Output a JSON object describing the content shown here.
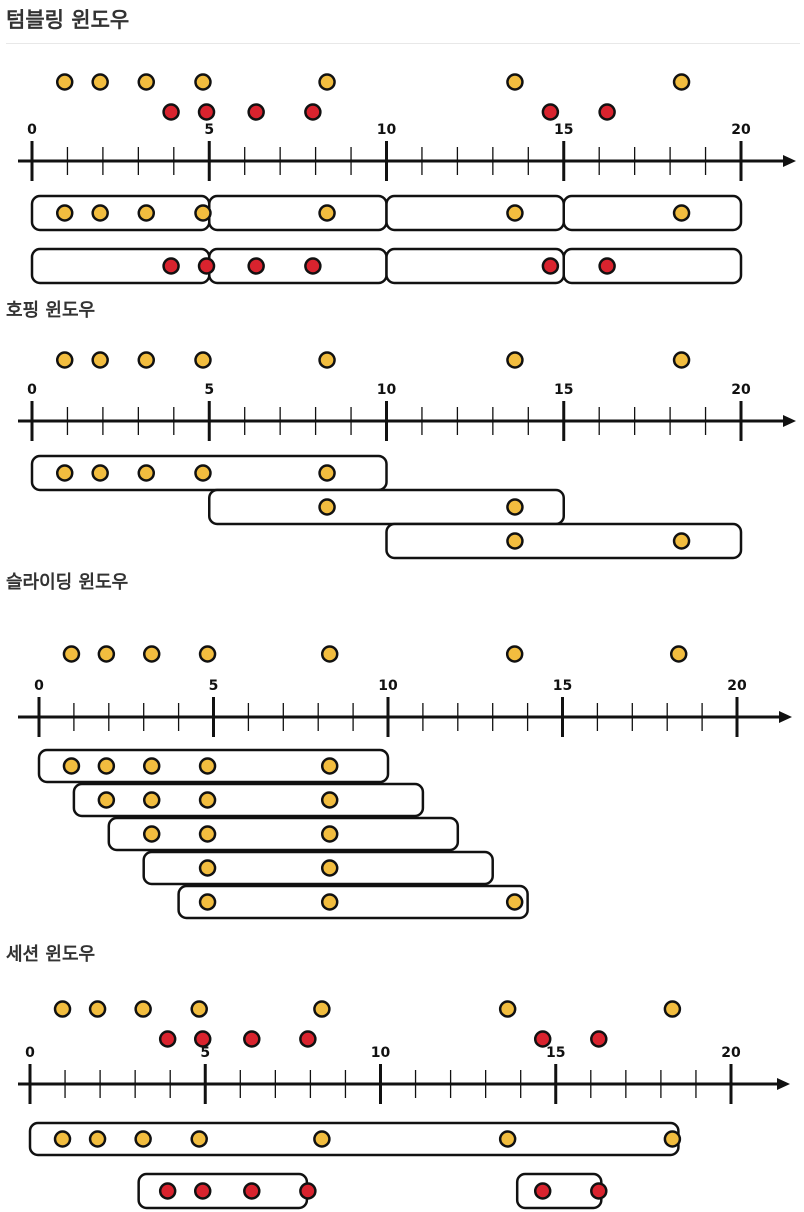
{
  "sections": {
    "tumbling": {
      "title": "텀블링 윈도우",
      "axis_ticks": [
        "0",
        "5",
        "10",
        "15",
        "20"
      ],
      "events_yellow": [
        0.5,
        1.5,
        2.8,
        4.4,
        7.9,
        13.2,
        17.9
      ],
      "events_red": [
        3.5,
        4.5,
        5.9,
        7.5,
        14.2,
        15.8
      ],
      "windows": [
        [
          0,
          5
        ],
        [
          5,
          10
        ],
        [
          10,
          15
        ],
        [
          15,
          20
        ]
      ]
    },
    "hopping": {
      "title": "호핑 윈도우",
      "axis_ticks": [
        "0",
        "5",
        "10",
        "15",
        "20"
      ],
      "events": [
        0.5,
        1.5,
        2.8,
        4.4,
        7.9,
        13.2,
        17.9
      ],
      "windows": [
        [
          0,
          10
        ],
        [
          5,
          15
        ],
        [
          10,
          20
        ]
      ]
    },
    "sliding": {
      "title": "슬라이딩 윈도우",
      "axis_ticks": [
        "0",
        "5",
        "10",
        "15",
        "20"
      ],
      "events": [
        0.5,
        1.5,
        2.8,
        4.4,
        7.9,
        13.2,
        17.9
      ],
      "windows": [
        [
          0,
          10
        ],
        [
          1,
          11
        ],
        [
          2,
          12
        ],
        [
          3,
          13
        ],
        [
          4,
          14
        ]
      ]
    },
    "session": {
      "title": "세션 윈도우",
      "axis_ticks": [
        "0",
        "5",
        "10",
        "15",
        "20"
      ],
      "events_yellow": [
        0.5,
        1.5,
        2.8,
        4.4,
        7.9,
        13.2,
        17.9
      ],
      "events_red": [
        3.5,
        4.5,
        5.9,
        7.5,
        14.2,
        15.8
      ],
      "windows_yellow": [
        [
          0,
          18.5
        ]
      ],
      "windows_red": [
        [
          3.1,
          7.9
        ],
        [
          13.9,
          16.3
        ]
      ]
    }
  },
  "colors": {
    "yellow": "#F2BD3F",
    "red": "#D9232E",
    "stroke": "#111111"
  }
}
